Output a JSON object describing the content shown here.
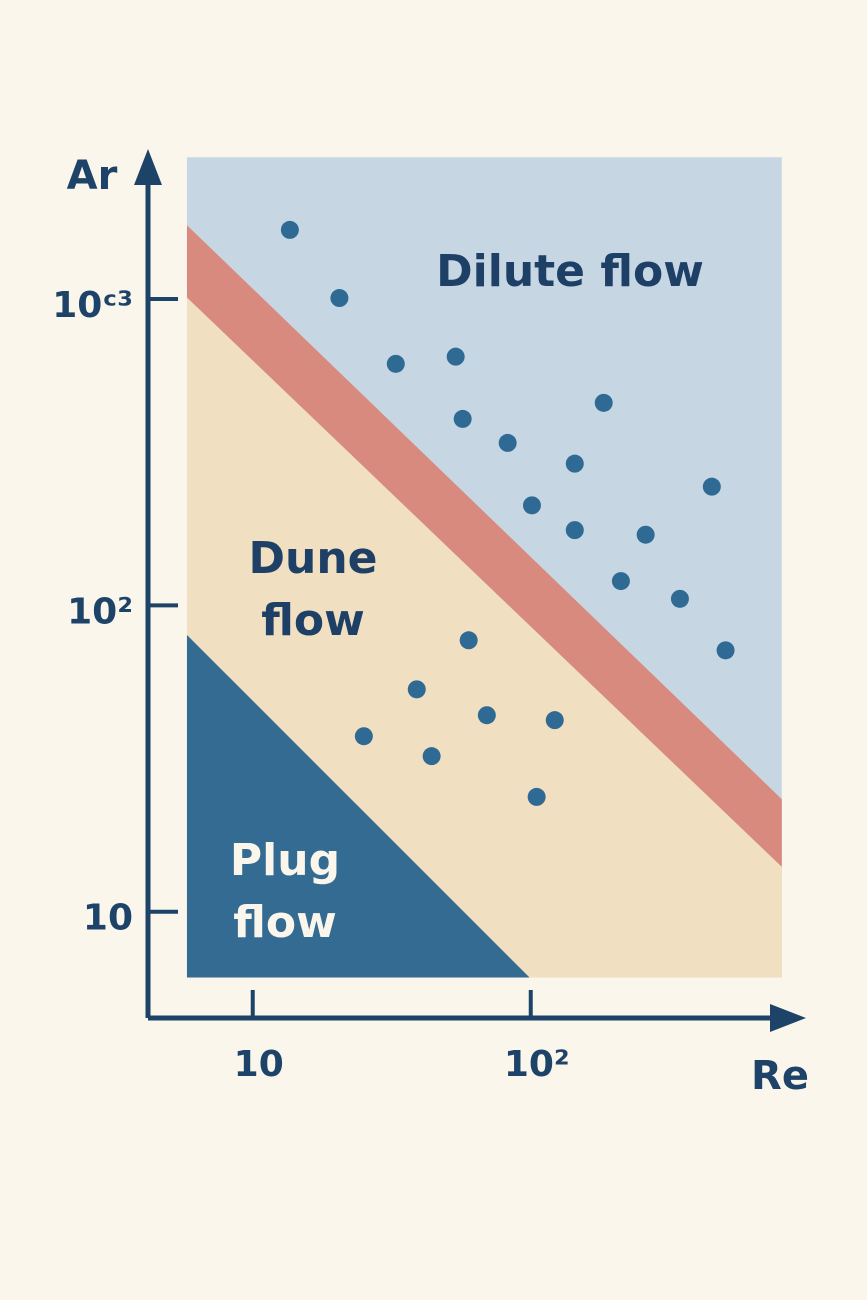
{
  "chart_data": {
    "type": "scatter",
    "x_label": "Re",
    "y_label": "Ar",
    "log_x": true,
    "log_y": true,
    "xlim": [
      4.2,
      930
    ],
    "ylim": [
      4.5,
      2950
    ],
    "xticks": [
      10,
      {
        "value": 100,
        "label": "10²"
      }
    ],
    "yticks": [
      10,
      {
        "value": 100,
        "label": "10²"
      },
      {
        "value": 1000,
        "label": "10ᶜ³"
      }
    ],
    "axis_color": "#1d4468",
    "regions": [
      {
        "label": "Dilute flow",
        "color": "#c6d7e3",
        "x": [
          5.8,
          5.8,
          800,
          800
        ],
        "y": [
          6.1,
          2900,
          2900,
          6.1
        ]
      },
      {
        "color": "#d98a7e",
        "x": [
          5.8,
          800,
          800,
          5.8
        ],
        "y": [
          1740,
          23.3,
          14,
          1010
        ]
      },
      {
        "label": "Dune flow",
        "color": "#f0dfc0",
        "x": [
          5.8,
          800,
          800,
          5.8
        ],
        "y": [
          1010,
          14,
          6.1,
          6.1
        ]
      },
      {
        "label": "Plug flow",
        "color": "#336b93",
        "x": [
          5.8,
          5.8,
          99
        ],
        "y": [
          80,
          6.1,
          6.1
        ]
      }
    ],
    "series": [
      {
        "color": "#2f6a94",
        "x": [
          13.6,
          20.5,
          32.7,
          53.7,
          56.9,
          82.6,
          183,
          144,
          101,
          144,
          259,
          448,
          211,
          344,
          502,
          59.8,
          38.9,
          69.5,
          122,
          25.1,
          44.0,
          105
        ],
        "y": [
          1680,
          1007,
          614,
          648,
          406,
          339,
          458,
          290,
          212,
          176,
          170,
          244,
          120,
          105,
          71.3,
          76.9,
          53.2,
          43.8,
          42.2,
          37.4,
          32.2,
          23.7
        ]
      }
    ]
  }
}
